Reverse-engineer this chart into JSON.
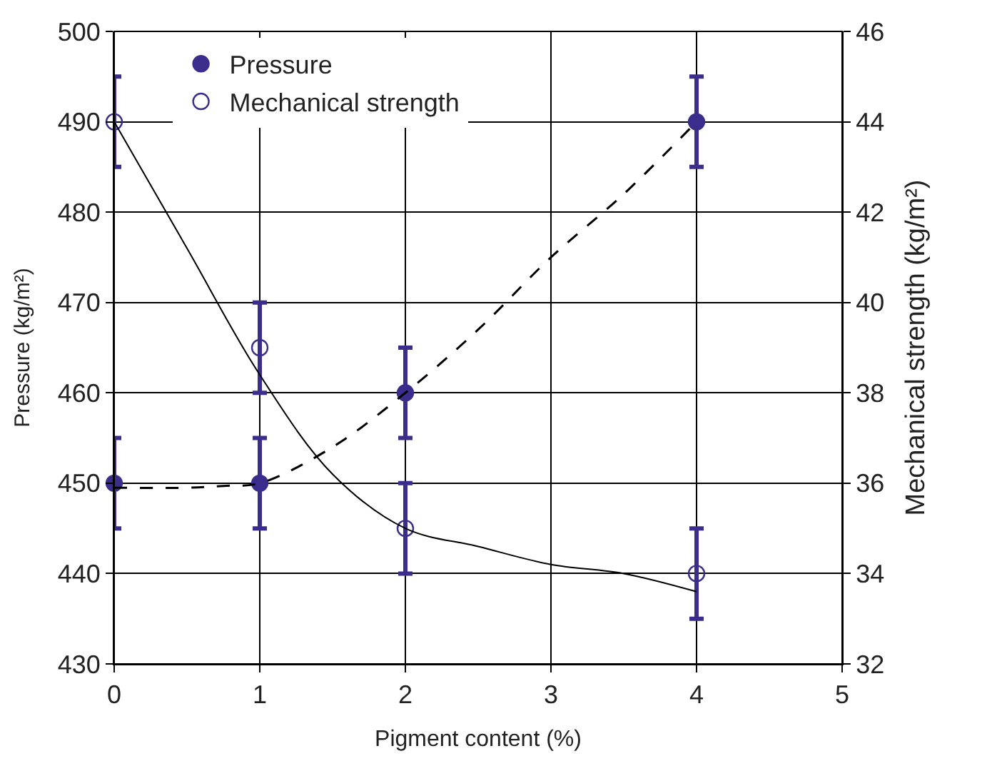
{
  "chart_data": {
    "type": "scatter",
    "xlabel": "Pigment content (%)",
    "ylabel": "Pressure (kg/m²)",
    "y2label": "Mechanical strength (kg/m²)",
    "xlim": [
      0,
      5
    ],
    "xticks": [
      0,
      1,
      2,
      3,
      4,
      5
    ],
    "ylim": [
      430,
      500
    ],
    "yticks": [
      430,
      440,
      450,
      460,
      470,
      480,
      490,
      500
    ],
    "y2lim": [
      32,
      46
    ],
    "y2ticks": [
      32,
      34,
      36,
      38,
      40,
      42,
      44,
      46
    ],
    "grid": true,
    "legend": "top left",
    "series": [
      {
        "name": "Pressure",
        "marker": "circle",
        "color": "#3b2d8c",
        "x": [
          0,
          1,
          2,
          4
        ],
        "values": [
          450,
          450,
          460,
          490
        ],
        "errors": [
          5,
          5,
          5,
          5
        ]
      },
      {
        "name": "Mechanical strength",
        "marker": "circle-open",
        "axis": "y2",
        "color": "#3b2d8c",
        "x": [
          0,
          1,
          2,
          4
        ],
        "values": [
          44,
          39,
          35,
          34
        ],
        "errors": [
          1,
          1,
          1,
          1
        ]
      },
      {
        "type": "line",
        "line_style": "dashed",
        "color": "#000000",
        "x": [
          0,
          0.5,
          0.75,
          1,
          1.5,
          2,
          2.5,
          3,
          3.5,
          4
        ],
        "values": [
          449.5,
          449.5,
          449.7,
          450,
          454,
          460,
          467,
          475,
          482,
          490
        ]
      },
      {
        "type": "line",
        "line_style": "solid",
        "axis": "y2",
        "color": "#000000",
        "x": [
          0,
          0.5,
          1,
          1.5,
          2,
          2.5,
          3,
          3.5,
          4
        ],
        "values": [
          44,
          41.2,
          38.4,
          36.2,
          35,
          34.6,
          34.2,
          34,
          33.6
        ]
      }
    ]
  }
}
